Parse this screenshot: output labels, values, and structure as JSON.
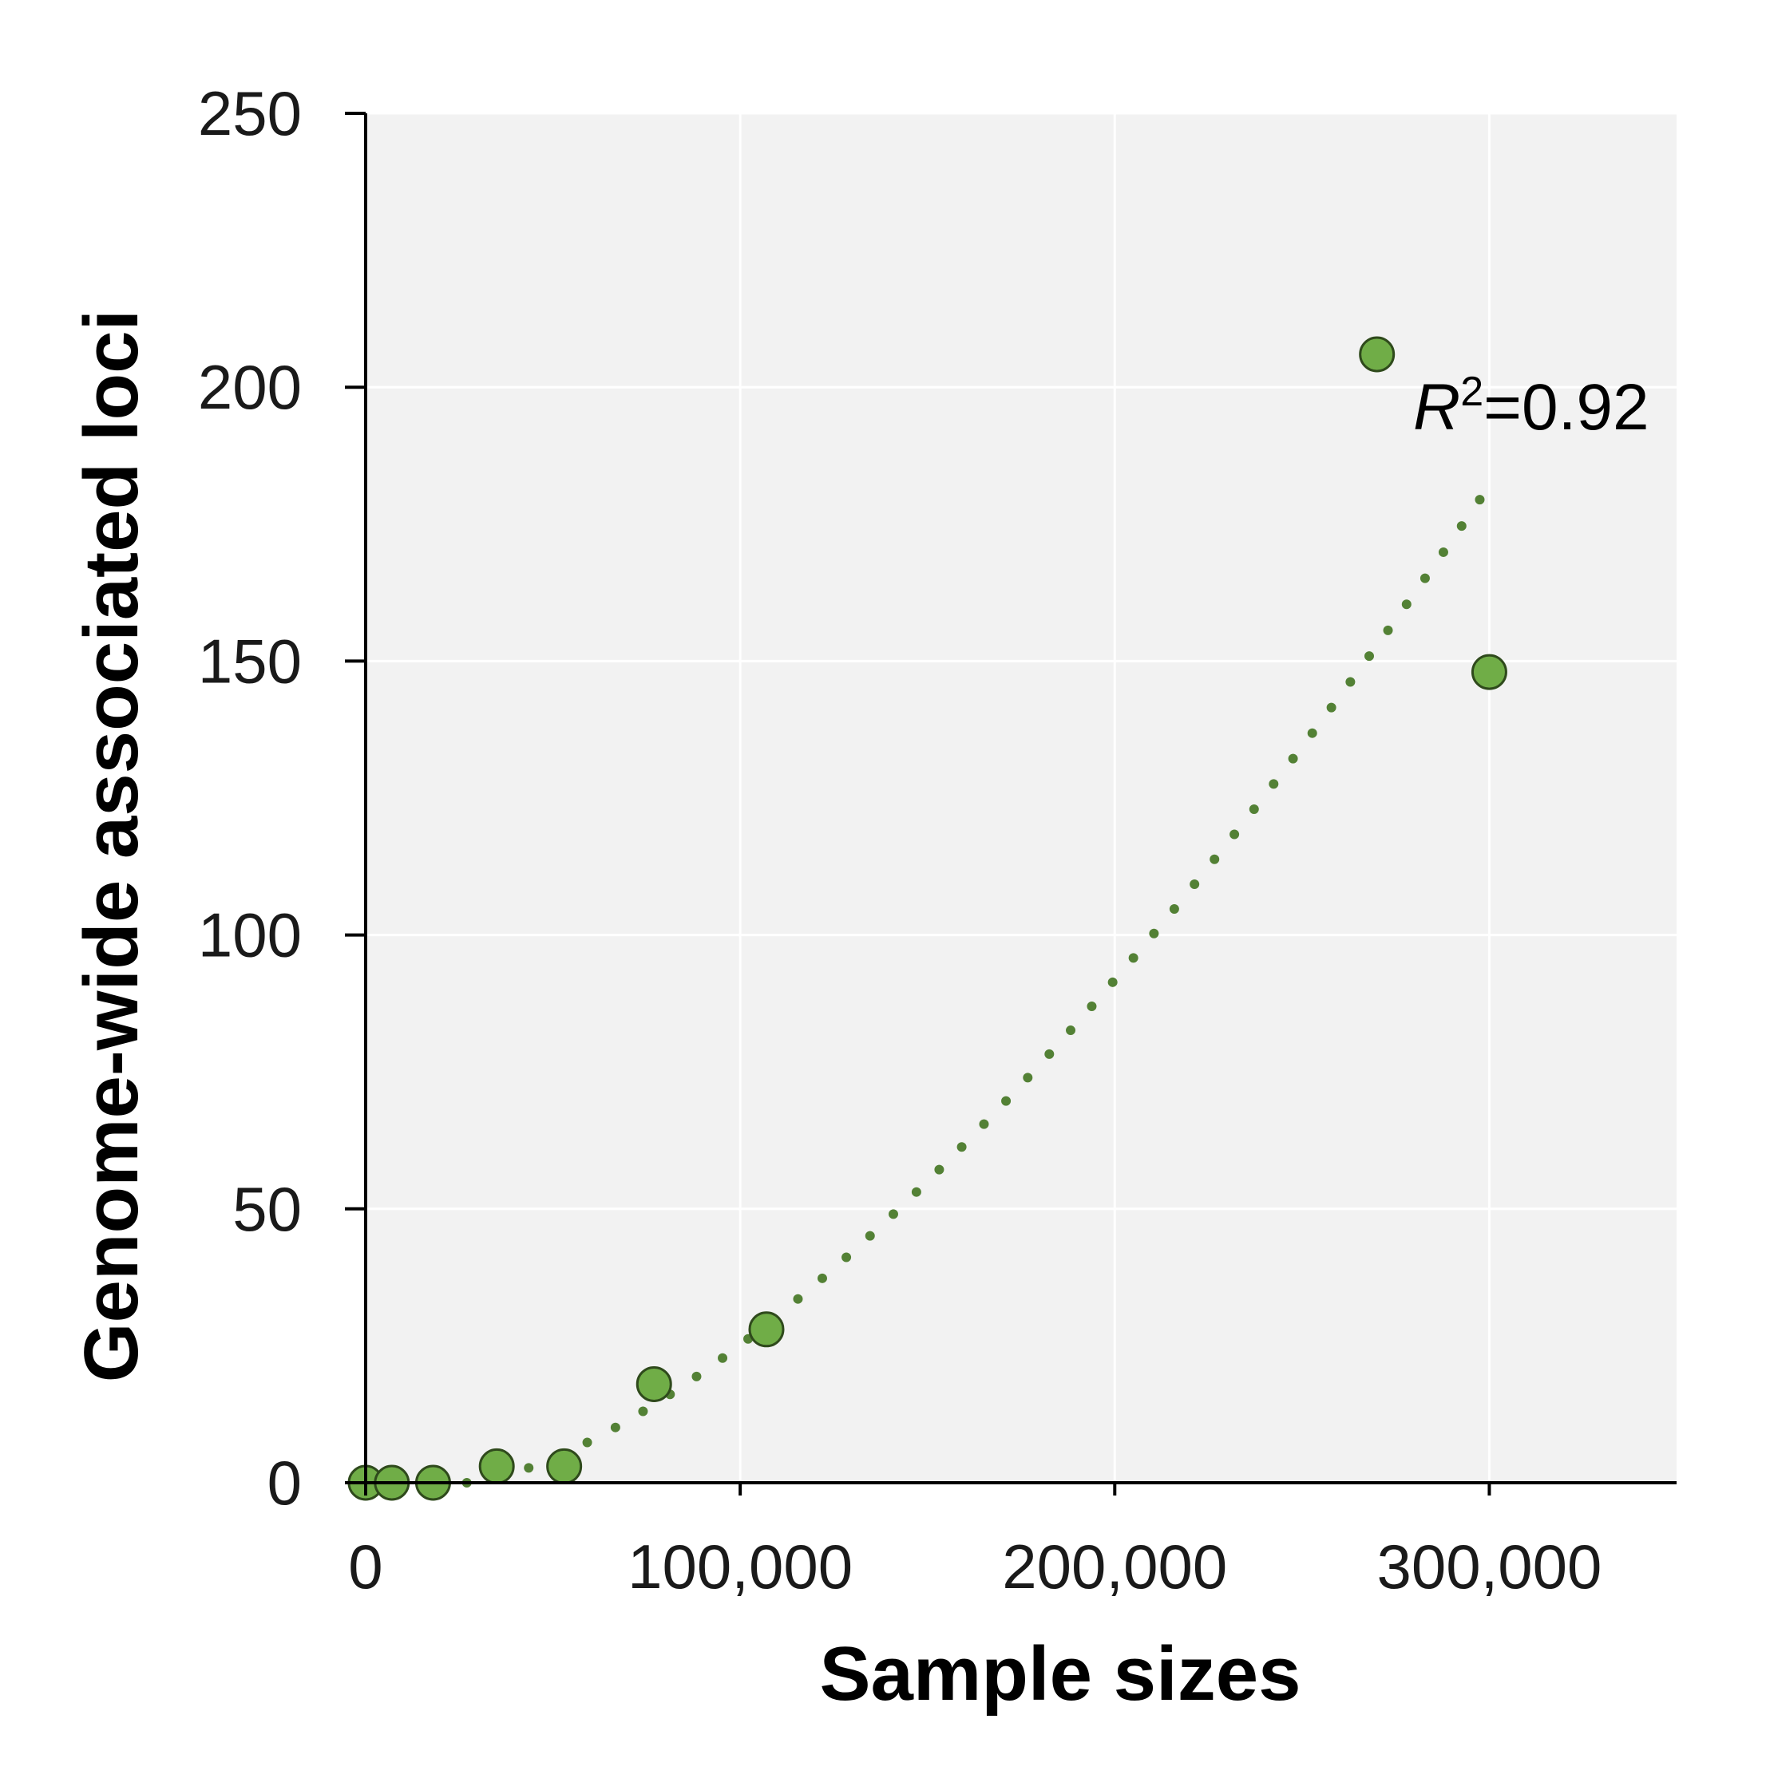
{
  "chart_data": {
    "type": "scatter",
    "xlabel": "Sample sizes",
    "ylabel": "Genome-wide associated loci",
    "xlim": [
      0,
      350000
    ],
    "ylim": [
      0,
      250
    ],
    "x_ticks": [
      0,
      100000,
      200000,
      300000
    ],
    "x_tick_labels": [
      "0",
      "100,000",
      "200,000",
      "300,000"
    ],
    "y_ticks": [
      0,
      50,
      100,
      150,
      200,
      250
    ],
    "y_tick_labels": [
      "0",
      "50",
      "100",
      "150",
      "200",
      "250"
    ],
    "grid": true,
    "points": [
      {
        "x": 0,
        "y": 0
      },
      {
        "x": 7000,
        "y": 0
      },
      {
        "x": 18000,
        "y": 0
      },
      {
        "x": 35000,
        "y": 3
      },
      {
        "x": 53000,
        "y": 3
      },
      {
        "x": 77000,
        "y": 18
      },
      {
        "x": 107000,
        "y": 28
      },
      {
        "x": 270000,
        "y": 206
      },
      {
        "x": 300000,
        "y": 148
      }
    ],
    "trendline": {
      "style": "dotted",
      "x_range": [
        27000,
        300000
      ],
      "y_at_start": 0,
      "y_at_end": 182
    },
    "annotation": {
      "symbol": "R",
      "superscript": "2",
      "value_text": "=0.92"
    },
    "colors": {
      "point_fill": "#70AD47",
      "point_stroke": "#2f4a1c",
      "trendline": "#538135",
      "plot_background": "#f2f2f2",
      "grid": "#ffffff",
      "axis": "#000000"
    }
  }
}
